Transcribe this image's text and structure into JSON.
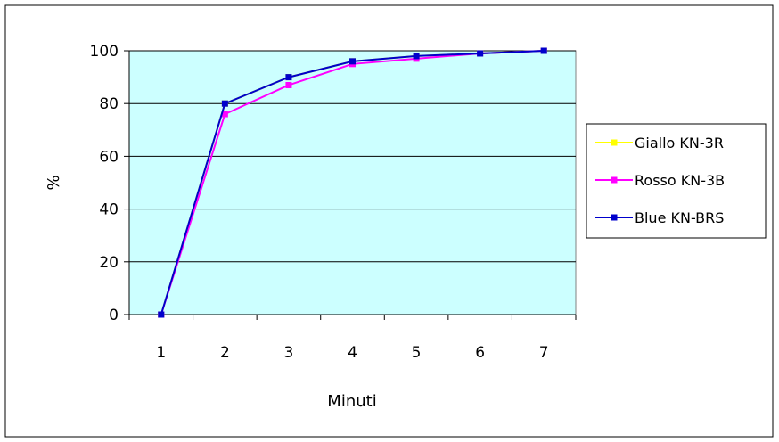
{
  "chart_data": {
    "type": "line",
    "xlabel": "Minuti",
    "ylabel": "%",
    "categories": [
      "1",
      "2",
      "3",
      "4",
      "5",
      "6",
      "7"
    ],
    "ylim": [
      0,
      100
    ],
    "yticks": [
      0,
      20,
      40,
      60,
      80,
      100
    ],
    "grid": "horizontal",
    "legend_position": "right",
    "plot_background": "#ccffff",
    "series": [
      {
        "name": "Giallo KN-3R",
        "color": "#ffff00",
        "values": [
          0,
          80,
          90,
          96,
          98,
          99,
          100
        ]
      },
      {
        "name": "Rosso KN-3B",
        "color": "#ff00ff",
        "values": [
          0,
          76,
          87,
          95,
          97,
          99,
          100
        ]
      },
      {
        "name": "Blue KN-BRS",
        "color": "#0000cc",
        "values": [
          0,
          80,
          90,
          96,
          98,
          99,
          100
        ]
      }
    ]
  }
}
